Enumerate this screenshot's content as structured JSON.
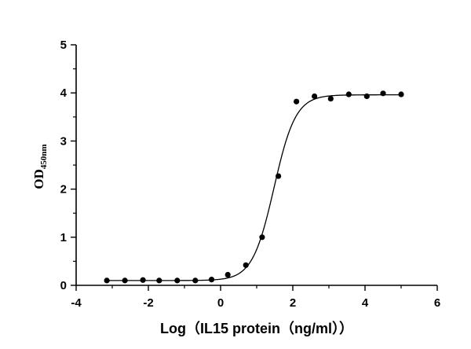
{
  "chart_data": {
    "type": "scatter",
    "title": "",
    "xlabel": "Log（IL15 protein（ng/ml））",
    "ylabel_main": "OD",
    "ylabel_sub": "450nm",
    "xlim": [
      -4,
      6
    ],
    "ylim": [
      0,
      5
    ],
    "xticks": [
      "-4",
      "-2",
      "0",
      "2",
      "4",
      "6"
    ],
    "yticks": [
      "0",
      "1",
      "2",
      "3",
      "4",
      "5"
    ],
    "grid": false,
    "points": {
      "x": [
        -3.15,
        -2.65,
        -2.15,
        -1.7,
        -1.2,
        -0.7,
        -0.25,
        0.2,
        0.7,
        1.15,
        1.6,
        2.1,
        2.6,
        3.05,
        3.55,
        4.05,
        4.5,
        5.0
      ],
      "y": [
        0.1,
        0.1,
        0.11,
        0.1,
        0.1,
        0.1,
        0.12,
        0.22,
        0.42,
        1.0,
        2.27,
        3.82,
        3.93,
        3.88,
        3.97,
        3.93,
        3.99,
        3.97
      ]
    },
    "fit_curve": {
      "type": "four-parameter logistic",
      "bottom": 0.1,
      "top": 3.96,
      "log_ec50": 1.48,
      "hill_slope": 1.45,
      "x_range": [
        -3.15,
        5.0
      ]
    }
  }
}
